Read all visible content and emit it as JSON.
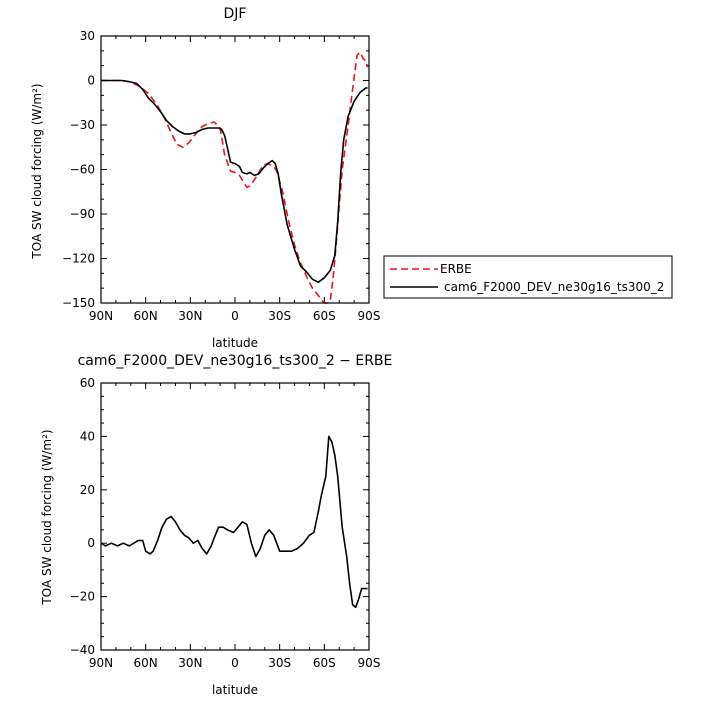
{
  "chart_data": [
    {
      "type": "line",
      "title": "DJF",
      "xlabel": "latitude",
      "ylabel": "TOA SW cloud forcing (W/m²)",
      "xlim": [
        90,
        -90
      ],
      "ylim": [
        -150,
        30
      ],
      "xticks": [
        {
          "value": 90,
          "label": "90N"
        },
        {
          "value": 60,
          "label": "60N"
        },
        {
          "value": 30,
          "label": "30N"
        },
        {
          "value": 0,
          "label": "0"
        },
        {
          "value": -30,
          "label": "30S"
        },
        {
          "value": -60,
          "label": "60S"
        },
        {
          "value": -90,
          "label": "90S"
        }
      ],
      "yticks": [
        30,
        0,
        -30,
        -60,
        -90,
        -120,
        -150
      ],
      "legend": {
        "placement": "right"
      },
      "series": [
        {
          "name": "ERBE",
          "color": "#e8141b",
          "dash": "dashed",
          "x": [
            90,
            82,
            76,
            70,
            64,
            58,
            52,
            47,
            43,
            39,
            35,
            31,
            28,
            24,
            22,
            18,
            14,
            10,
            7,
            3,
            0,
            -3,
            -6,
            -8,
            -10,
            -13,
            -16,
            -19,
            -22,
            -26,
            -28,
            -32,
            -36,
            -40,
            -44,
            -48,
            -52,
            -56,
            -58,
            -60,
            -62,
            -64,
            -66,
            -68,
            -70,
            -72,
            -76,
            -80,
            -82,
            -84,
            -86,
            -88,
            -89
          ],
          "y": [
            0,
            0,
            0,
            -1,
            -4,
            -9,
            -17,
            -26,
            -35,
            -43,
            -45,
            -42,
            -38,
            -33,
            -31,
            -29,
            -28,
            -32,
            -50,
            -61,
            -62,
            -64,
            -69,
            -72,
            -71,
            -67,
            -62,
            -57,
            -56,
            -58,
            -61,
            -75,
            -95,
            -111,
            -123,
            -132,
            -140,
            -145,
            -148,
            -150,
            -150,
            -148,
            -132,
            -110,
            -85,
            -60,
            -30,
            2,
            17,
            19,
            15,
            13,
            9
          ]
        },
        {
          "name": "cam6_F2000_DEV_ne30g16_ts300_2",
          "color": "#000000",
          "dash": "solid",
          "x": [
            90,
            82,
            76,
            70,
            66,
            62,
            58,
            54,
            50,
            46,
            42,
            38,
            34,
            30,
            26,
            22,
            18,
            14,
            11,
            9,
            7,
            5,
            3,
            0,
            -3,
            -5,
            -8,
            -10,
            -13,
            -16,
            -19,
            -22,
            -25,
            -27,
            -29,
            -31,
            -35,
            -40,
            -44,
            -48,
            -52,
            -56,
            -60,
            -64,
            -67,
            -69,
            -71,
            -73,
            -76,
            -80,
            -84,
            -88,
            -89
          ],
          "y": [
            0,
            0,
            0,
            -1,
            -2,
            -6,
            -12,
            -16,
            -21,
            -27,
            -31,
            -34,
            -36,
            -36,
            -35,
            -33,
            -32,
            -32,
            -32,
            -33,
            -37,
            -46,
            -55,
            -56,
            -58,
            -62,
            -63,
            -62,
            -64,
            -63,
            -59,
            -56,
            -54,
            -56,
            -63,
            -76,
            -97,
            -114,
            -125,
            -129,
            -134,
            -136,
            -133,
            -128,
            -118,
            -95,
            -62,
            -40,
            -24,
            -14,
            -8,
            -5,
            -5
          ]
        }
      ]
    },
    {
      "type": "line",
      "title": "cam6_F2000_DEV_ne30g16_ts300_2 − ERBE",
      "xlabel": "latitude",
      "ylabel": "TOA SW cloud forcing (W/m²)",
      "xlim": [
        90,
        -90
      ],
      "ylim": [
        -40,
        60
      ],
      "xticks": [
        {
          "value": 90,
          "label": "90N"
        },
        {
          "value": 60,
          "label": "60N"
        },
        {
          "value": 30,
          "label": "30N"
        },
        {
          "value": 0,
          "label": "0"
        },
        {
          "value": -30,
          "label": "30S"
        },
        {
          "value": -60,
          "label": "60S"
        },
        {
          "value": -90,
          "label": "90S"
        }
      ],
      "yticks": [
        60,
        40,
        20,
        0,
        -20,
        -40
      ],
      "series": [
        {
          "name": "",
          "color": "#000000",
          "dash": "solid",
          "x": [
            90,
            87,
            83,
            79,
            75,
            71,
            68,
            65,
            62,
            60,
            57,
            55,
            52,
            49,
            46,
            43,
            40,
            37,
            34,
            31,
            28,
            25,
            22,
            19,
            16,
            14,
            11,
            8,
            5,
            1,
            -2,
            -5,
            -8,
            -11,
            -14,
            -17,
            -20,
            -23,
            -26,
            -30,
            -34,
            -38,
            -42,
            -46,
            -50,
            -53,
            -56,
            -58,
            -61,
            -63,
            -65,
            -67,
            -69,
            -72,
            -75,
            -77,
            -79,
            -81,
            -83,
            -85,
            -87,
            -89
          ],
          "y": [
            0,
            -1,
            0,
            -1,
            0,
            -1,
            0,
            1,
            1,
            -3,
            -4,
            -3,
            1,
            6,
            9,
            10,
            8,
            5,
            3,
            2,
            0,
            1,
            -2,
            -4,
            -1,
            2,
            6,
            6,
            5,
            4,
            6,
            8,
            7,
            0,
            -5,
            -2,
            3,
            5,
            3,
            -3,
            -3,
            -3,
            -2,
            0,
            3,
            4,
            12,
            18,
            25,
            40,
            38,
            33,
            25,
            6,
            -5,
            -15,
            -23,
            -24,
            -21,
            -17,
            -17,
            -17
          ]
        }
      ]
    }
  ]
}
